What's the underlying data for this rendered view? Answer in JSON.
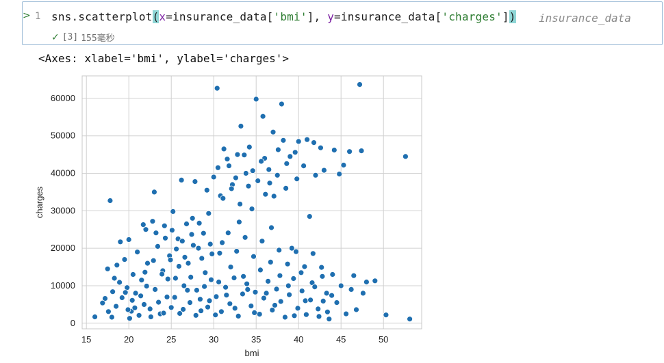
{
  "cell": {
    "line_number": "1",
    "code": {
      "prefix": "sns.scatterplot",
      "open_paren": "(",
      "x_kw": "x",
      "x_mid": "=insurance_data[",
      "x_str": "'bmi'",
      "x_end": "], ",
      "y_kw": "y",
      "y_mid": "=insurance_data[",
      "y_str": "'charges'",
      "y_end": "]",
      "close_paren": ")"
    },
    "variable_hint": "insurance_data",
    "exec_count": "[3]",
    "exec_time": "155毫秒"
  },
  "output": {
    "text": "<Axes: xlabel='bmi', ylabel='charges'>"
  },
  "colors": {
    "point": "#1f6fb0",
    "grid": "#d0d0d0",
    "accent_green": "#2e7d32",
    "cell_border": "#9cbbd6"
  },
  "chart_data": {
    "type": "scatter",
    "xlabel": "bmi",
    "ylabel": "charges",
    "xlim": [
      14.5,
      54.5
    ],
    "ylim": [
      -1500,
      66000
    ],
    "x_ticks": [
      15,
      20,
      25,
      30,
      35,
      40,
      45,
      50
    ],
    "y_ticks": [
      0,
      10000,
      20000,
      30000,
      40000,
      50000,
      60000
    ],
    "grid": true,
    "points": [
      [
        16.0,
        1700
      ],
      [
        17.2,
        6600
      ],
      [
        17.5,
        14500
      ],
      [
        17.8,
        32700
      ],
      [
        18.0,
        1600
      ],
      [
        18.3,
        12000
      ],
      [
        18.5,
        4500
      ],
      [
        18.6,
        15500
      ],
      [
        19.0,
        21700
      ],
      [
        19.2,
        6800
      ],
      [
        19.5,
        17000
      ],
      [
        19.8,
        9500
      ],
      [
        20.0,
        22300
      ],
      [
        20.1,
        1300
      ],
      [
        20.3,
        3200
      ],
      [
        20.5,
        13000
      ],
      [
        20.8,
        8000
      ],
      [
        21.0,
        19000
      ],
      [
        21.2,
        2100
      ],
      [
        21.5,
        11500
      ],
      [
        21.8,
        5000
      ],
      [
        22.0,
        25000
      ],
      [
        22.2,
        16000
      ],
      [
        22.5,
        3800
      ],
      [
        22.8,
        27200
      ],
      [
        23.0,
        35000
      ],
      [
        23.1,
        9000
      ],
      [
        23.4,
        20500
      ],
      [
        23.7,
        2500
      ],
      [
        24.0,
        14000
      ],
      [
        24.2,
        26000
      ],
      [
        24.5,
        7000
      ],
      [
        24.8,
        18000
      ],
      [
        25.0,
        4200
      ],
      [
        25.2,
        29800
      ],
      [
        25.5,
        12000
      ],
      [
        25.8,
        22500
      ],
      [
        26.0,
        2600
      ],
      [
        26.2,
        38200
      ],
      [
        26.5,
        10000
      ],
      [
        26.8,
        26500
      ],
      [
        27.0,
        16000
      ],
      [
        27.2,
        5500
      ],
      [
        27.5,
        28000
      ],
      [
        27.8,
        37800
      ],
      [
        28.0,
        8800
      ],
      [
        28.2,
        20000
      ],
      [
        28.5,
        3300
      ],
      [
        28.8,
        24000
      ],
      [
        29.0,
        13500
      ],
      [
        29.2,
        35500
      ],
      [
        29.5,
        6000
      ],
      [
        29.8,
        18500
      ],
      [
        30.0,
        39000
      ],
      [
        30.2,
        2200
      ],
      [
        30.4,
        62700
      ],
      [
        30.6,
        11000
      ],
      [
        30.8,
        34000
      ],
      [
        31.0,
        21500
      ],
      [
        31.2,
        46500
      ],
      [
        31.5,
        7500
      ],
      [
        31.8,
        42000
      ],
      [
        32.0,
        15000
      ],
      [
        32.2,
        37000
      ],
      [
        32.5,
        4000
      ],
      [
        32.8,
        45000
      ],
      [
        33.0,
        27000
      ],
      [
        33.2,
        52600
      ],
      [
        33.5,
        12500
      ],
      [
        33.8,
        40000
      ],
      [
        34.0,
        9000
      ],
      [
        34.2,
        47000
      ],
      [
        34.5,
        30500
      ],
      [
        34.8,
        2800
      ],
      [
        35.0,
        59800
      ],
      [
        35.2,
        38000
      ],
      [
        35.5,
        14200
      ],
      [
        35.8,
        55200
      ],
      [
        36.0,
        44000
      ],
      [
        36.2,
        8000
      ],
      [
        36.5,
        41000
      ],
      [
        36.8,
        25500
      ],
      [
        37.0,
        51000
      ],
      [
        37.2,
        4800
      ],
      [
        37.5,
        39500
      ],
      [
        37.8,
        12700
      ],
      [
        38.0,
        58500
      ],
      [
        38.2,
        48800
      ],
      [
        38.5,
        36000
      ],
      [
        38.8,
        10000
      ],
      [
        39.0,
        44500
      ],
      [
        39.2,
        20000
      ],
      [
        39.5,
        2000
      ],
      [
        39.8,
        38500
      ],
      [
        40.0,
        48500
      ],
      [
        40.3,
        13500
      ],
      [
        40.6,
        42000
      ],
      [
        40.8,
        6000
      ],
      [
        41.0,
        49000
      ],
      [
        41.3,
        28500
      ],
      [
        41.6,
        10800
      ],
      [
        41.8,
        48200
      ],
      [
        42.0,
        39500
      ],
      [
        42.3,
        3800
      ],
      [
        42.6,
        46800
      ],
      [
        42.8,
        12500
      ],
      [
        43.0,
        40800
      ],
      [
        43.3,
        8000
      ],
      [
        43.6,
        1100
      ],
      [
        44.0,
        13000
      ],
      [
        44.2,
        46200
      ],
      [
        44.5,
        5500
      ],
      [
        44.8,
        39800
      ],
      [
        45.0,
        10000
      ],
      [
        45.3,
        42200
      ],
      [
        45.6,
        2500
      ],
      [
        46.0,
        45800
      ],
      [
        46.2,
        9000
      ],
      [
        46.5,
        12700
      ],
      [
        46.8,
        3600
      ],
      [
        47.2,
        63700
      ],
      [
        47.4,
        46000
      ],
      [
        47.6,
        8000
      ],
      [
        48.0,
        11000
      ],
      [
        49.0,
        11300
      ],
      [
        50.3,
        2200
      ],
      [
        52.6,
        44500
      ],
      [
        53.1,
        1100
      ],
      [
        20.7,
        4100
      ],
      [
        21.4,
        7300
      ],
      [
        22.1,
        9900
      ],
      [
        22.6,
        1700
      ],
      [
        23.5,
        5600
      ],
      [
        24.1,
        2700
      ],
      [
        24.6,
        11800
      ],
      [
        25.4,
        6900
      ],
      [
        25.9,
        15200
      ],
      [
        26.4,
        3700
      ],
      [
        26.9,
        8800
      ],
      [
        27.3,
        12300
      ],
      [
        27.9,
        2100
      ],
      [
        28.4,
        6400
      ],
      [
        28.9,
        9800
      ],
      [
        29.3,
        4300
      ],
      [
        29.7,
        11600
      ],
      [
        30.3,
        7100
      ],
      [
        30.9,
        3100
      ],
      [
        31.4,
        9600
      ],
      [
        31.9,
        5200
      ],
      [
        32.4,
        12100
      ],
      [
        32.9,
        1900
      ],
      [
        33.4,
        7800
      ],
      [
        33.9,
        10500
      ],
      [
        34.4,
        4600
      ],
      [
        34.9,
        8300
      ],
      [
        35.4,
        2400
      ],
      [
        35.9,
        6700
      ],
      [
        36.4,
        11200
      ],
      [
        36.9,
        3500
      ],
      [
        37.4,
        9100
      ],
      [
        37.9,
        5800
      ],
      [
        38.4,
        1600
      ],
      [
        38.9,
        7600
      ],
      [
        39.4,
        11900
      ],
      [
        39.9,
        4000
      ],
      [
        40.4,
        8600
      ],
      [
        40.9,
        2300
      ],
      [
        41.4,
        6200
      ],
      [
        41.9,
        9700
      ],
      [
        42.4,
        1800
      ],
      [
        42.9,
        5900
      ],
      [
        43.4,
        3000
      ],
      [
        43.9,
        7400
      ],
      [
        21.9,
        13600
      ],
      [
        22.9,
        16700
      ],
      [
        23.9,
        13100
      ],
      [
        24.9,
        16900
      ],
      [
        25.6,
        19800
      ],
      [
        26.6,
        17600
      ],
      [
        27.6,
        20800
      ],
      [
        28.6,
        17300
      ],
      [
        29.6,
        21100
      ],
      [
        30.7,
        18700
      ],
      [
        31.7,
        24100
      ],
      [
        32.7,
        19200
      ],
      [
        33.7,
        22900
      ],
      [
        34.7,
        17800
      ],
      [
        35.7,
        21900
      ],
      [
        36.7,
        16300
      ],
      [
        37.7,
        19500
      ],
      [
        38.7,
        15800
      ],
      [
        39.7,
        19100
      ],
      [
        40.7,
        15100
      ],
      [
        41.7,
        18600
      ],
      [
        42.7,
        14900
      ],
      [
        30.5,
        41500
      ],
      [
        31.6,
        43800
      ],
      [
        32.6,
        38800
      ],
      [
        33.6,
        44900
      ],
      [
        34.6,
        40700
      ],
      [
        35.6,
        43200
      ],
      [
        36.6,
        37400
      ],
      [
        37.6,
        46300
      ],
      [
        38.6,
        42600
      ],
      [
        39.6,
        45600
      ],
      [
        29.4,
        29300
      ],
      [
        31.1,
        33300
      ],
      [
        32.1,
        35900
      ],
      [
        33.1,
        31800
      ],
      [
        34.1,
        36600
      ],
      [
        36.1,
        34400
      ],
      [
        37.1,
        33900
      ],
      [
        21.7,
        26300
      ],
      [
        23.2,
        24100
      ],
      [
        24.3,
        22700
      ],
      [
        25.1,
        24800
      ],
      [
        26.3,
        21900
      ],
      [
        27.4,
        23700
      ],
      [
        28.3,
        26700
      ],
      [
        18.9,
        10900
      ],
      [
        19.6,
        8200
      ],
      [
        19.9,
        3600
      ],
      [
        20.4,
        6100
      ],
      [
        18.1,
        8400
      ],
      [
        17.6,
        3100
      ],
      [
        16.9,
        5400
      ]
    ]
  }
}
